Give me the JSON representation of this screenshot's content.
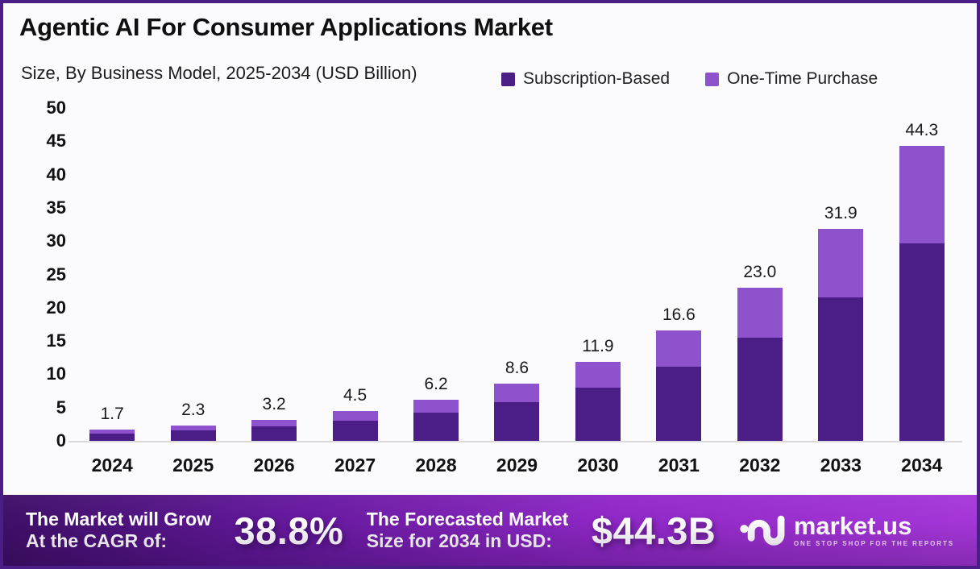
{
  "title": "Agentic AI For Consumer Applications Market",
  "subtitle": "Size, By Business Model, 2025-2034 (USD Billion)",
  "colors": {
    "subscription": "#4A1E86",
    "one_time": "#8E53CC",
    "frame_border": "#4A1E86",
    "background": "#FBFAFC",
    "axis_line": "#D9D9D9",
    "banner_gradient_start": "#3D0F66",
    "banner_gradient_end": "#A637D9"
  },
  "chart_data": {
    "type": "bar",
    "stacked": true,
    "title": "Agentic AI For Consumer Applications Market Size, By Business Model, 2025-2034 (USD Billion)",
    "categories": [
      "2024",
      "2025",
      "2026",
      "2027",
      "2028",
      "2029",
      "2030",
      "2031",
      "2032",
      "2033",
      "2034"
    ],
    "series": [
      {
        "name": "Subscription-Based",
        "color": "#4A1E86",
        "values": [
          1.1,
          1.6,
          2.2,
          3.0,
          4.2,
          5.8,
          8.0,
          11.2,
          15.5,
          21.5,
          29.7
        ]
      },
      {
        "name": "One-Time Purchase",
        "color": "#8E53CC",
        "values": [
          0.6,
          0.7,
          1.0,
          1.5,
          2.0,
          2.8,
          3.9,
          5.4,
          7.5,
          10.4,
          14.6
        ]
      }
    ],
    "totals": [
      1.7,
      2.3,
      3.2,
      4.5,
      6.2,
      8.6,
      11.9,
      16.6,
      23.0,
      31.9,
      44.3
    ],
    "total_labels": [
      "1.7",
      "2.3",
      "3.2",
      "4.5",
      "6.2",
      "8.6",
      "11.9",
      "16.6",
      "23.0",
      "31.9",
      "44.3"
    ],
    "xlabel": "",
    "ylabel": "",
    "ylim": [
      0,
      50
    ],
    "yticks": [
      0,
      5,
      10,
      15,
      20,
      25,
      30,
      35,
      40,
      45,
      50
    ],
    "grid": false,
    "legend_position": "top-right"
  },
  "legend": {
    "items": [
      {
        "label": "Subscription-Based",
        "color": "#4A1E86"
      },
      {
        "label": "One-Time Purchase",
        "color": "#8E53CC"
      }
    ]
  },
  "banner": {
    "cagr_label_line1": "The Market will Grow",
    "cagr_label_line2": "At the CAGR of:",
    "cagr_value": "38.8%",
    "forecast_label_line1": "The Forecasted Market",
    "forecast_label_line2": "Size for 2034 in USD:",
    "forecast_value": "$44.3B",
    "logo_text": "market.us",
    "logo_tagline": "ONE STOP SHOP FOR THE REPORTS"
  }
}
